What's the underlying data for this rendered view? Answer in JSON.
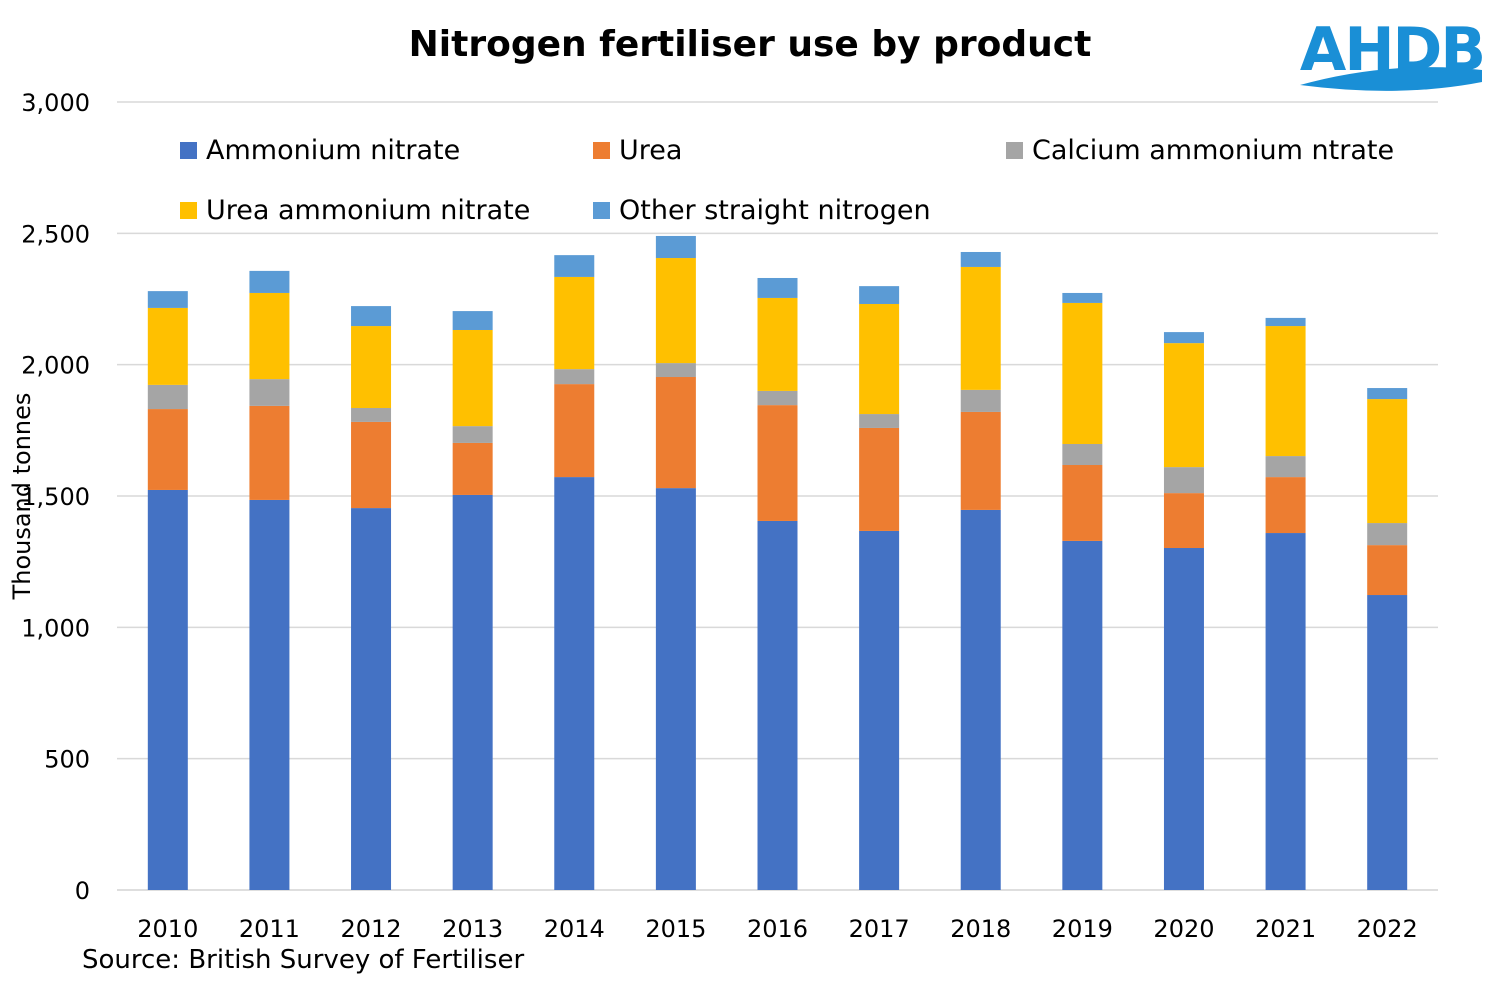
{
  "logo": {
    "text": "AHDB",
    "color": "#1a8fd6"
  },
  "source": "Source: British Survey of Fertiliser",
  "chart_data": {
    "type": "bar",
    "stacked": true,
    "title": "Nitrogen fertiliser use by product",
    "xlabel": "",
    "ylabel": "Thousand tonnes",
    "ylim": [
      0,
      3000
    ],
    "yticks": [
      0,
      500,
      1000,
      1500,
      2000,
      2500,
      3000
    ],
    "ytick_labels": [
      "0",
      "500",
      "1,000",
      "1,500",
      "2,000",
      "2,500",
      "3,000"
    ],
    "grid": true,
    "legend_position": "top (inside plot)",
    "categories": [
      "2010",
      "2011",
      "2012",
      "2013",
      "2014",
      "2015",
      "2016",
      "2017",
      "2018",
      "2019",
      "2020",
      "2021",
      "2022"
    ],
    "series": [
      {
        "name": "Ammonium nitrate",
        "color": "#4472C4",
        "values": [
          1523,
          1485,
          1454,
          1504,
          1572,
          1530,
          1405,
          1367,
          1447,
          1329,
          1302,
          1359,
          1123
        ]
      },
      {
        "name": "Urea",
        "color": "#ED7D31",
        "values": [
          308,
          358,
          328,
          198,
          354,
          423,
          441,
          392,
          373,
          289,
          209,
          213,
          190
        ]
      },
      {
        "name": "Calcium ammonium ntrate",
        "color": "#A5A5A5",
        "values": [
          92,
          102,
          53,
          64,
          57,
          53,
          54,
          53,
          84,
          80,
          99,
          80,
          84
        ]
      },
      {
        "name": "Urea ammonium nitrate",
        "color": "#FFC000",
        "values": [
          293,
          328,
          312,
          366,
          351,
          400,
          354,
          419,
          468,
          537,
          472,
          495,
          472
        ]
      },
      {
        "name": "Other straight nitrogen",
        "color": "#5B9BD5",
        "values": [
          64,
          84,
          76,
          72,
          83,
          84,
          76,
          68,
          57,
          38,
          42,
          31,
          42
        ]
      }
    ]
  }
}
